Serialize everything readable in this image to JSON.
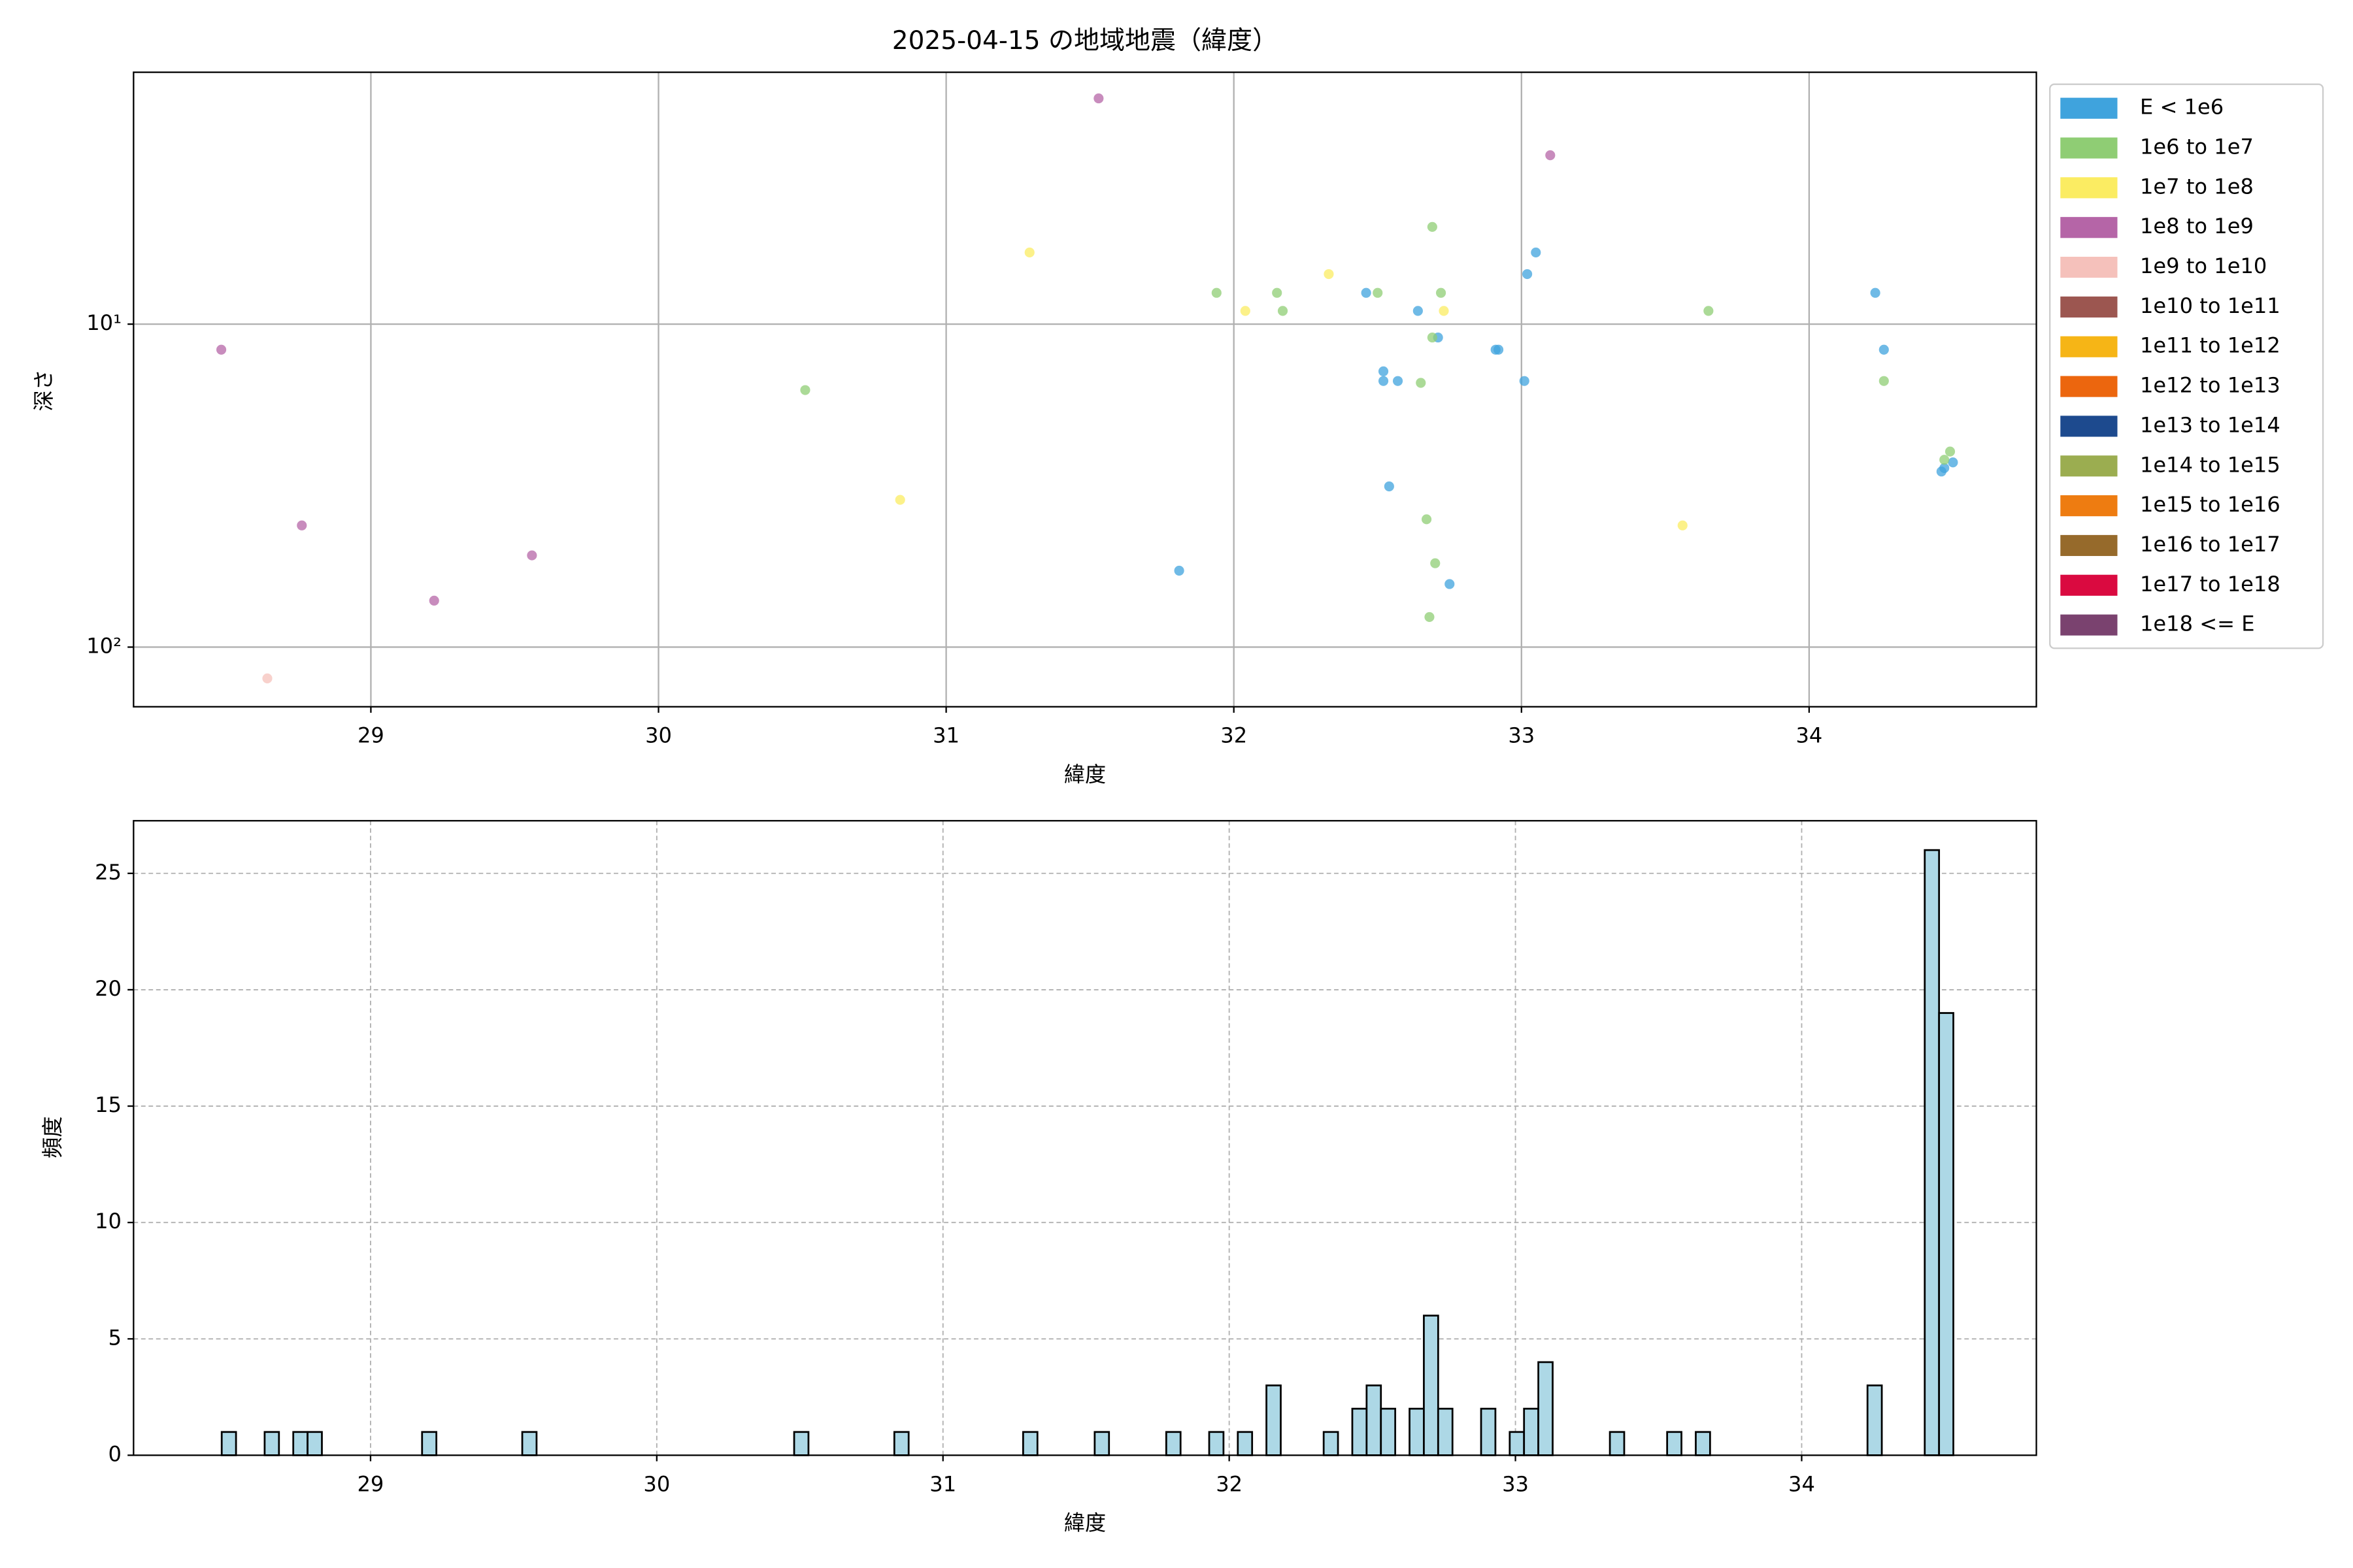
{
  "chart_data": [
    {
      "type": "scatter",
      "title": "2025-04-15 の地域地震（緯度）",
      "xlabel": "緯度",
      "ylabel": "深さ",
      "xlim": [
        28.175,
        34.79
      ],
      "ylim": [
        1.66,
        153
      ],
      "yscale": "log",
      "y_inverted": true,
      "xticks": [
        29,
        30,
        31,
        32,
        33,
        34
      ],
      "yticks": [
        {
          "value": 10,
          "label": "10¹"
        },
        {
          "value": 100,
          "label": "10²"
        }
      ],
      "grid": true,
      "legend": "outside right",
      "series": [
        {
          "name": "E < 1e6",
          "color": "#3fa3dd",
          "x": [
            31.81,
            32.46,
            32.64,
            32.52,
            32.52,
            32.57,
            32.54,
            32.71,
            32.75,
            32.91,
            32.92,
            33.01,
            33.02,
            33.05,
            34.23,
            34.26,
            34.46,
            34.5,
            34.47
          ],
          "values": [
            58,
            8,
            9.1,
            14,
            15,
            15,
            31.8,
            11,
            63.8,
            12,
            12,
            15,
            7,
            6,
            8,
            12,
            28.6,
            26.8,
            27.9
          ]
        },
        {
          "name": "1e6 to 1e7",
          "color": "#8fcd74",
          "x": [
            30.51,
            31.94,
            32.15,
            32.17,
            32.5,
            32.69,
            32.72,
            32.69,
            33.65,
            32.65,
            32.67,
            32.7,
            32.68,
            34.26,
            34.47,
            34.49
          ],
          "values": [
            16,
            8,
            8,
            9.1,
            8,
            5,
            8,
            11,
            9.1,
            15.2,
            40.2,
            55,
            80.7,
            15,
            26.3,
            24.8
          ]
        },
        {
          "name": "1e7 to 1e8",
          "color": "#fbec62",
          "x": [
            30.84,
            31.29,
            32.04,
            32.33,
            32.73,
            33.56
          ],
          "values": [
            35,
            6,
            9.1,
            7,
            9.1,
            42
          ]
        },
        {
          "name": "1e8 to 1e9",
          "color": "#b565a7",
          "x": [
            28.48,
            28.76,
            29.22,
            29.56,
            31.53,
            33.1
          ],
          "values": [
            12,
            42,
            71.8,
            52,
            2,
            3
          ]
        },
        {
          "name": "1e9 to 1e10",
          "color": "#f5c1bb",
          "x": [
            28.64
          ],
          "values": [
            125
          ]
        },
        {
          "name": "1e10 to 1e11",
          "color": "#9c5650",
          "x": [],
          "values": []
        },
        {
          "name": "1e11 to 1e12",
          "color": "#f6b516",
          "x": [],
          "values": []
        },
        {
          "name": "1e12 to 1e13",
          "color": "#ec660e",
          "x": [],
          "values": []
        },
        {
          "name": "1e13 to 1e14",
          "color": "#1d4a8e",
          "x": [],
          "values": []
        },
        {
          "name": "1e14 to 1e15",
          "color": "#9bad50",
          "x": [],
          "values": []
        },
        {
          "name": "1e15 to 1e16",
          "color": "#ee7c11",
          "x": [],
          "values": []
        },
        {
          "name": "1e16 to 1e17",
          "color": "#966a2b",
          "x": [],
          "values": []
        },
        {
          "name": "1e17 to 1e18",
          "color": "#da0a40",
          "x": [],
          "values": []
        },
        {
          "name": "1e18 <= E",
          "color": "#7a426f",
          "x": [],
          "values": []
        }
      ]
    },
    {
      "type": "histogram",
      "xlabel": "緯度",
      "ylabel": "頻度",
      "color": "#add8e6",
      "edgecolor": "#000000",
      "xlim": [
        28.172,
        34.82
      ],
      "ylim": [
        0,
        27.26
      ],
      "xticks": [
        29,
        30,
        31,
        32,
        33,
        34
      ],
      "yticks": [
        0,
        5,
        10,
        15,
        20,
        25
      ],
      "grid": "dashed",
      "bins": [
        28.48,
        28.53,
        28.58,
        28.63,
        28.68,
        28.73,
        28.78,
        28.83,
        28.88,
        28.93,
        28.98,
        29.03,
        29.08,
        29.13,
        29.18,
        29.23,
        29.28,
        29.33,
        29.38,
        29.43,
        29.48,
        29.53,
        29.58,
        29.63,
        29.68,
        29.73,
        29.78,
        29.83,
        29.88,
        29.93,
        29.98,
        30.03,
        30.08,
        30.13,
        30.18,
        30.23,
        30.28,
        30.33,
        30.38,
        30.43,
        30.48,
        30.53,
        30.58,
        30.63,
        30.68,
        30.73,
        30.78,
        30.83,
        30.88,
        30.93,
        30.98,
        31.03,
        31.08,
        31.13,
        31.18,
        31.23,
        31.28,
        31.33,
        31.38,
        31.43,
        31.48,
        31.53,
        31.58,
        31.63,
        31.68,
        31.73,
        31.78,
        31.83,
        31.88,
        31.93,
        31.98,
        32.03,
        32.08,
        32.13,
        32.18,
        32.23,
        32.28,
        32.33,
        32.38,
        32.43,
        32.48,
        32.53,
        32.58,
        32.63,
        32.68,
        32.73,
        32.78,
        32.83,
        32.88,
        32.93,
        32.98,
        33.03,
        33.08,
        33.13,
        33.18,
        33.23,
        33.28,
        33.33,
        33.38,
        33.43,
        33.48,
        33.53,
        33.58,
        33.63,
        33.68,
        33.73,
        33.78,
        33.83,
        33.88,
        33.93,
        33.98,
        34.03,
        34.08,
        34.13,
        34.18,
        34.23,
        34.28,
        34.33,
        34.38,
        34.43,
        34.48,
        34.53
      ],
      "values": [
        1,
        0,
        0,
        1,
        0,
        1,
        1,
        0,
        0,
        0,
        0,
        0,
        0,
        0,
        1,
        0,
        0,
        0,
        0,
        0,
        0,
        1,
        0,
        0,
        0,
        0,
        0,
        0,
        0,
        0,
        0,
        0,
        0,
        0,
        0,
        0,
        0,
        0,
        0,
        0,
        1,
        0,
        0,
        0,
        0,
        0,
        0,
        1,
        0,
        0,
        0,
        0,
        0,
        0,
        0,
        0,
        1,
        0,
        0,
        0,
        0,
        1,
        0,
        0,
        0,
        0,
        1,
        0,
        0,
        1,
        0,
        1,
        0,
        3,
        0,
        0,
        0,
        1,
        0,
        2,
        3,
        2,
        0,
        2,
        6,
        2,
        0,
        0,
        2,
        0,
        1,
        2,
        4,
        0,
        0,
        0,
        0,
        1,
        0,
        0,
        0,
        1,
        0,
        1,
        0,
        0,
        0,
        0,
        0,
        0,
        0,
        0,
        0,
        0,
        0,
        3,
        0,
        0,
        0,
        26,
        19
      ]
    }
  ]
}
